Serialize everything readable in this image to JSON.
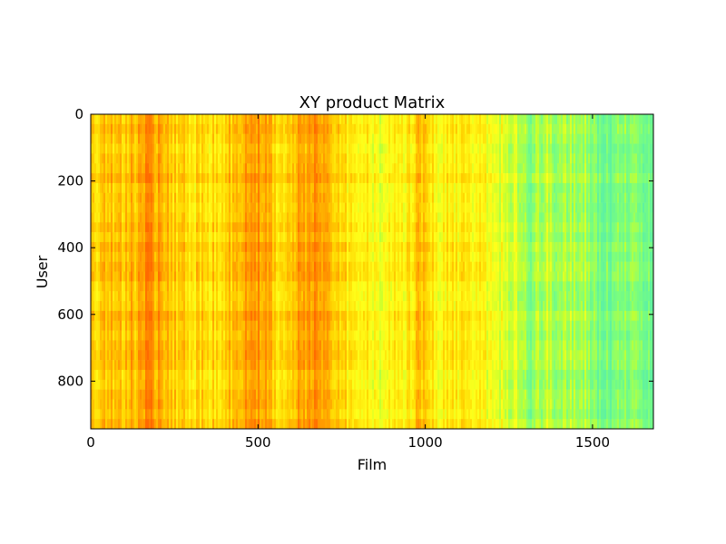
{
  "chart_data": {
    "type": "heatmap",
    "title": "XY product Matrix",
    "xlabel": "Film",
    "ylabel": "User",
    "xlim": [
      0,
      1682
    ],
    "ylim": [
      943,
      0
    ],
    "x_ticks": [
      0,
      500,
      1000,
      1500
    ],
    "y_ticks": [
      0,
      200,
      400,
      600,
      800
    ],
    "grid": false,
    "colormap": "jet",
    "colormap_stops": [
      "#ff6a00",
      "#ff9c00",
      "#ffd400",
      "#ffff1a",
      "#c6ff2e",
      "#7dff7a",
      "#5ff2a0"
    ],
    "column_profile_breakpoints": [
      0,
      30,
      130,
      170,
      240,
      300,
      380,
      440,
      470,
      520,
      560,
      620,
      670,
      760,
      840,
      870,
      940,
      980,
      1040,
      1150,
      1210,
      1290,
      1310,
      1360,
      1400,
      1480,
      1510,
      1550,
      1590,
      1650,
      1682
    ],
    "column_profile_levels": [
      0.35,
      0.3,
      0.25,
      0.12,
      0.3,
      0.36,
      0.34,
      0.25,
      0.2,
      0.12,
      0.34,
      0.2,
      0.15,
      0.4,
      0.45,
      0.55,
      0.42,
      0.3,
      0.45,
      0.42,
      0.55,
      0.62,
      0.8,
      0.68,
      0.72,
      0.7,
      0.85,
      0.92,
      0.78,
      0.88,
      0.88
    ]
  }
}
